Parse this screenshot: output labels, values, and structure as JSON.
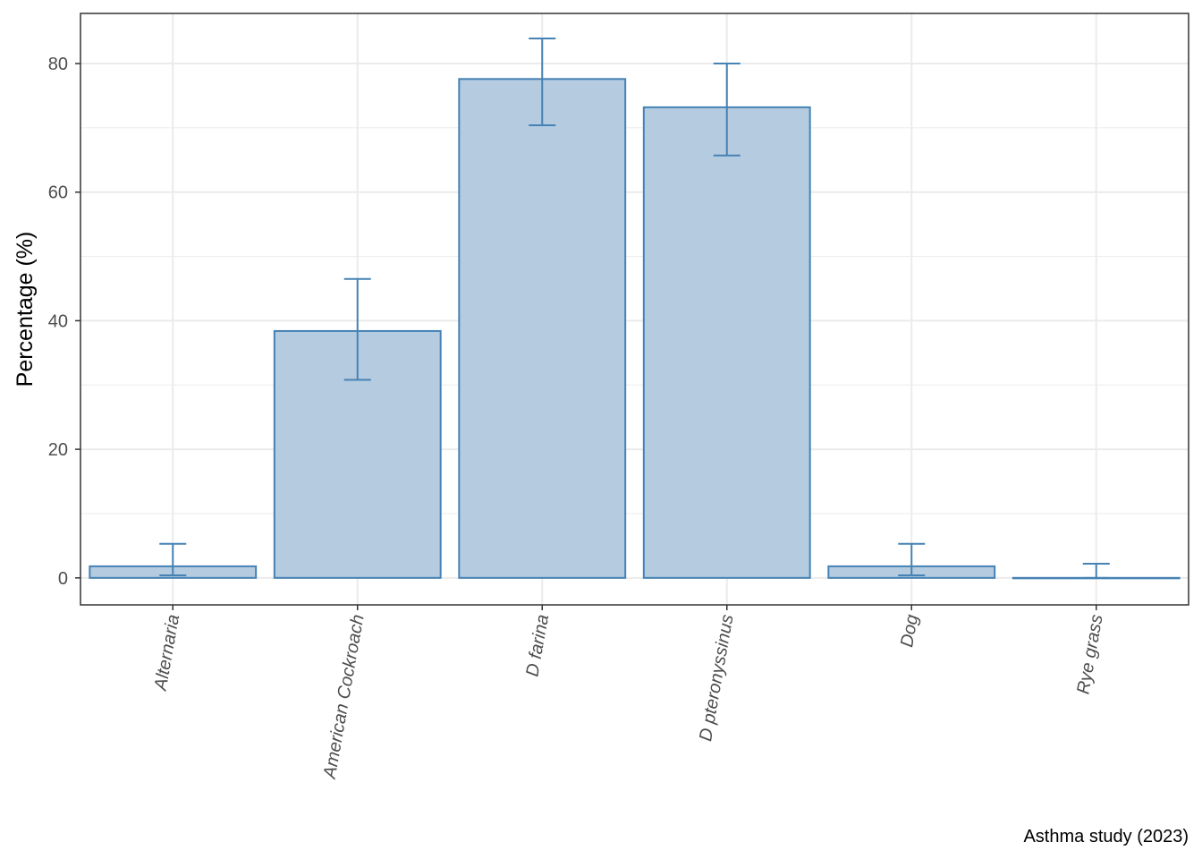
{
  "chart_data": {
    "type": "bar",
    "title": "",
    "xlabel": "",
    "ylabel": "Percentage (%)",
    "caption": "Asthma study (2023)",
    "categories": [
      "Alternaria",
      "American Cockroach",
      "D farina",
      "D pteronyssinus",
      "Dog",
      "Rye grass"
    ],
    "values": [
      1.8,
      38.4,
      77.6,
      73.2,
      1.8,
      0.0
    ],
    "error_low": [
      0.4,
      30.8,
      70.4,
      65.7,
      0.4,
      0.0
    ],
    "error_high": [
      5.3,
      46.5,
      83.9,
      80.0,
      5.3,
      2.2
    ],
    "ylim": [
      -4.2,
      87.8
    ],
    "yticks": [
      0,
      20,
      40,
      60,
      80
    ],
    "grid": true,
    "legend": "none",
    "colors": {
      "bar_fill": "#b4cbe0",
      "bar_stroke": "#4682b4",
      "grid": "#ebebeb",
      "axis": "#333333"
    }
  }
}
